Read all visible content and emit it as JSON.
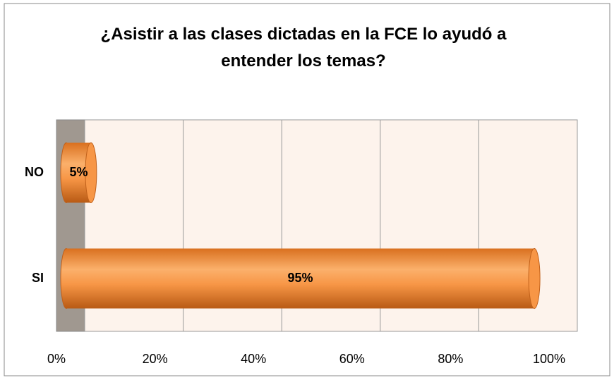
{
  "chart_data": {
    "type": "bar",
    "orientation": "horizontal",
    "title": "¿Asistir a las clases dictadas en la FCE lo ayudó a entender los temas?",
    "categories": [
      "NO",
      "SI"
    ],
    "values": [
      5,
      95
    ],
    "value_labels": [
      "5%",
      "95%"
    ],
    "color": "#f79646",
    "xlim": [
      0,
      100
    ],
    "xticks": [
      {
        "value": 0,
        "label": "0%"
      },
      {
        "value": 20,
        "label": "20%"
      },
      {
        "value": 40,
        "label": "40%"
      },
      {
        "value": 60,
        "label": "60%"
      },
      {
        "value": 80,
        "label": "80%"
      },
      {
        "value": 100,
        "label": "100%"
      }
    ],
    "grid": true
  }
}
